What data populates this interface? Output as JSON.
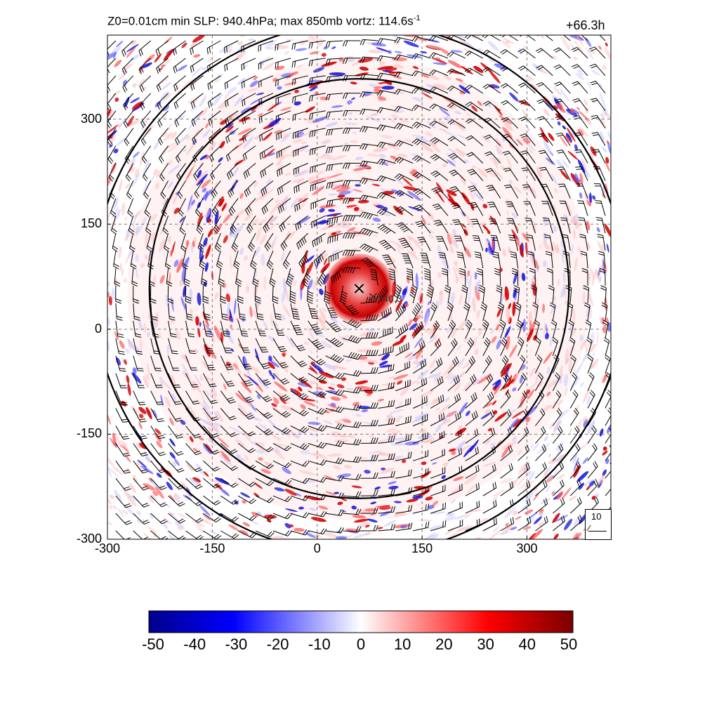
{
  "title": {
    "text": "Z0=0.01cm  min SLP: 940.4hPa; max 850mb vortz: 114.6s",
    "superscript": "-1",
    "time": "+66.3h"
  },
  "center_marker": {
    "label": "940.3",
    "x": 60,
    "y": 58
  },
  "reference_vector": {
    "label": "10"
  },
  "chart_data": {
    "type": "heatmap",
    "field": "850mb relative vorticity with wind barbs",
    "xlim": [
      -300,
      420
    ],
    "ylim": [
      -300,
      420
    ],
    "xticks": [
      "-300",
      "-150",
      "0",
      "150",
      "300"
    ],
    "yticks": [
      "300",
      "150",
      "0",
      "-150",
      "-300"
    ],
    "xtick_values": [
      -300,
      -150,
      0,
      150,
      300
    ],
    "ytick_values": [
      300,
      150,
      0,
      -150,
      -300
    ],
    "grid": true,
    "storm_center": [
      60,
      58
    ],
    "eyewall_radius": 50,
    "colorbar": {
      "ticks": [
        "-50",
        "-40",
        "-30",
        "-20",
        "-10",
        "0",
        "10",
        "20",
        "30",
        "40",
        "50"
      ],
      "values": [
        -50,
        -40,
        -30,
        -20,
        -10,
        0,
        10,
        20,
        30,
        40,
        50
      ],
      "colors": [
        "#00008b",
        "#0000ff",
        "#ffffff",
        "#ff0000",
        "#7a0000"
      ]
    },
    "contours": [
      {
        "name": "",
        "center": [
          60,
          58
        ],
        "radius": 300
      },
      {
        "name": "",
        "center": [
          60,
          58
        ],
        "radius": 380
      }
    ]
  }
}
